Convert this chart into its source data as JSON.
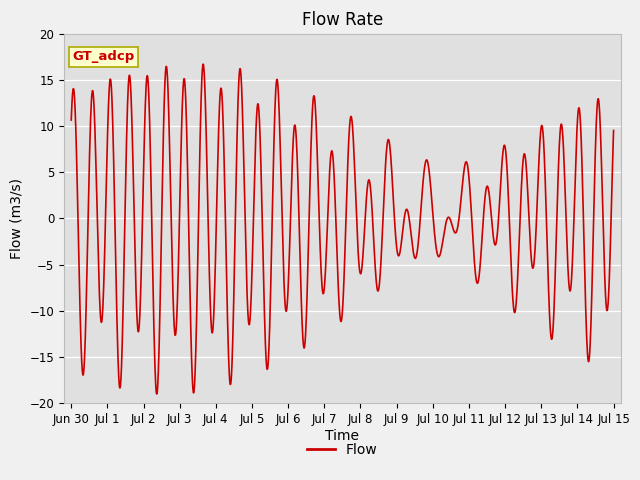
{
  "title": "Flow Rate",
  "xlabel": "Time",
  "ylabel": "Flow (m3/s)",
  "ylim": [
    -20,
    20
  ],
  "line_color": "#CC0000",
  "line_width": 1.2,
  "bg_color": "#E0E0E0",
  "fig_bg_color": "#F0F0F0",
  "legend_label": "Flow",
  "annotation_text": "GT_adcp",
  "annotation_bg": "#FFFFCC",
  "annotation_border": "#AAAA00",
  "x_ticks_labels": [
    "Jun 30",
    "Jul 1",
    "Jul 2",
    "Jul 3",
    "Jul 4",
    "Jul 5",
    "Jul 6",
    "Jul 7",
    "Jul 8",
    "Jul 9",
    "Jul 10",
    "Jul 11",
    "Jul 12",
    "Jul 13",
    "Jul 14",
    "Jul 15"
  ],
  "title_fontsize": 12,
  "axis_fontsize": 10,
  "tick_fontsize": 8.5
}
